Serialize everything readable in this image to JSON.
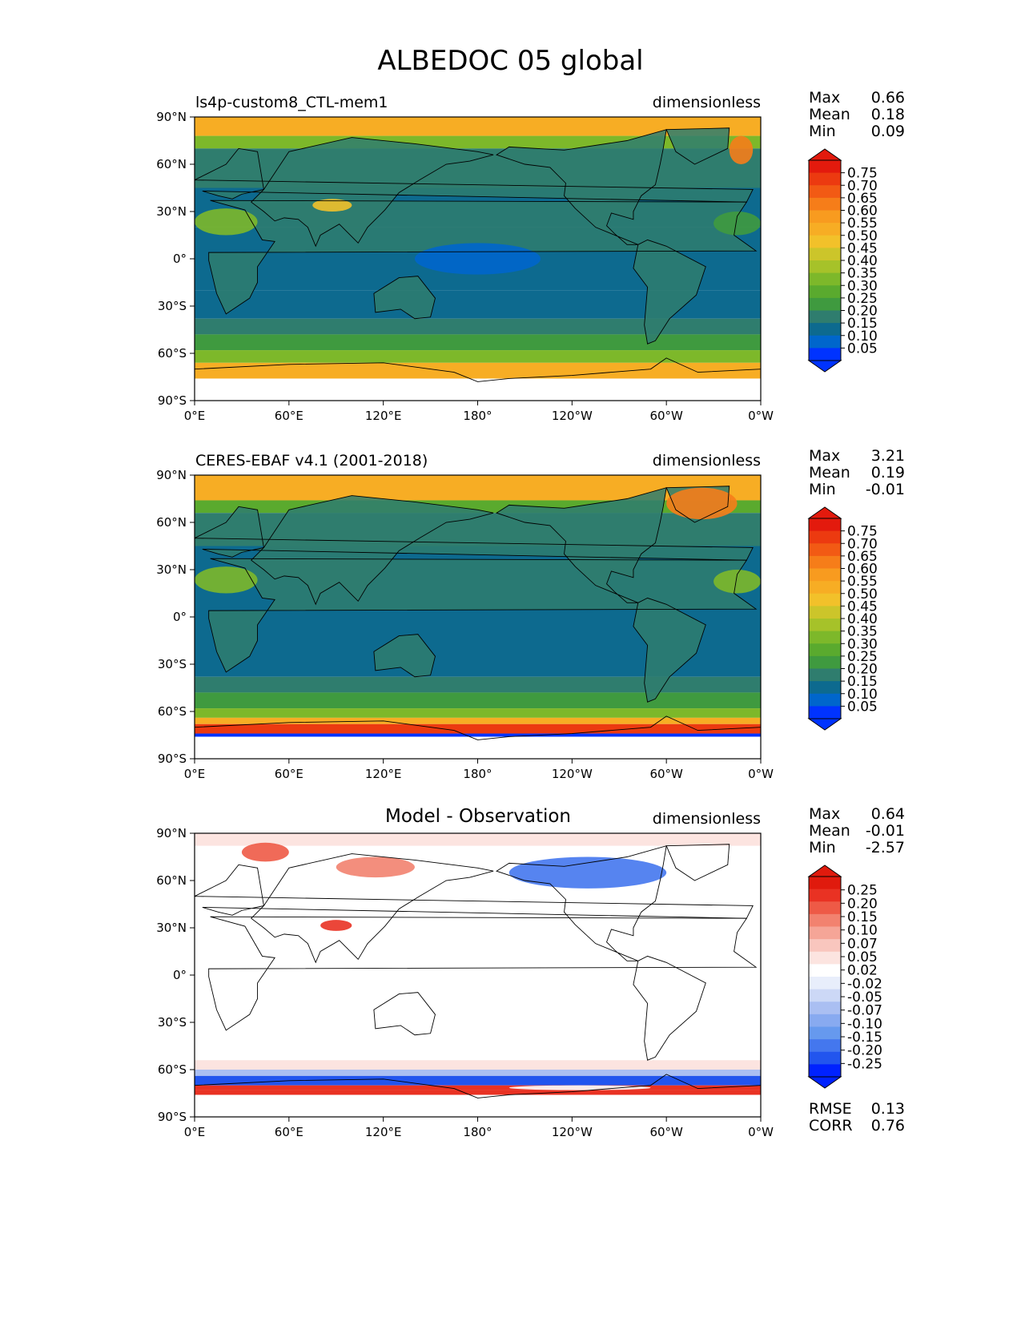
{
  "figure": {
    "title": "ALBEDOC 05 global"
  },
  "axes": {
    "lat_ticks": [
      "90°N",
      "60°N",
      "30°N",
      "0°",
      "30°S",
      "60°S",
      "90°S"
    ],
    "lon_ticks": [
      "0°E",
      "60°E",
      "120°E",
      "180°",
      "120°W",
      "60°W",
      "0°W"
    ]
  },
  "palettes": {
    "albedo": [
      "#0033ff",
      "#0066cc",
      "#0d6a8f",
      "#2f7d6e",
      "#3f9a3f",
      "#5aaa2e",
      "#7db82a",
      "#a6c229",
      "#ccc52a",
      "#f2c12a",
      "#f7ad24",
      "#f89b1f",
      "#f67d19",
      "#f25a14",
      "#ec3a10",
      "#e31a0d"
    ],
    "diff": [
      "#0022ff",
      "#2255ee",
      "#4477ee",
      "#6699ee",
      "#88aaf0",
      "#aabff2",
      "#ccd8f6",
      "#e8eefb",
      "#ffffff",
      "#fce4e0",
      "#f9c6be",
      "#f5a597",
      "#f2826f",
      "#ee5a46",
      "#e93223",
      "#e01a0d"
    ]
  },
  "panels": [
    {
      "title": "ls4p-custom8_CTL-mem1",
      "units": "dimensionless",
      "stats": [
        {
          "label": "Max",
          "value": "0.66"
        },
        {
          "label": "Mean",
          "value": "0.18"
        },
        {
          "label": "Min",
          "value": "0.09"
        }
      ],
      "colorbar": {
        "palette": "albedo",
        "ticks": [
          "0.75",
          "0.70",
          "0.65",
          "0.60",
          "0.55",
          "0.50",
          "0.45",
          "0.40",
          "0.35",
          "0.30",
          "0.25",
          "0.20",
          "0.15",
          "0.10",
          "0.05"
        ]
      },
      "map_bands": [
        {
          "lat": [
            90,
            78
          ],
          "color": "#f7ad24"
        },
        {
          "lat": [
            78,
            70
          ],
          "color": "#7db82a"
        },
        {
          "lat": [
            70,
            45
          ],
          "color": "#2f7d6e"
        },
        {
          "lat": [
            45,
            20
          ],
          "color": "#0d6a8f"
        },
        {
          "lat": [
            20,
            -20
          ],
          "color": "#0d6a8f"
        },
        {
          "lat": [
            -20,
            -38
          ],
          "color": "#0d6a8f"
        },
        {
          "lat": [
            -38,
            -48
          ],
          "color": "#2f7d6e"
        },
        {
          "lat": [
            -48,
            -58
          ],
          "color": "#3f9a3f"
        },
        {
          "lat": [
            -58,
            -66
          ],
          "color": "#7db82a"
        },
        {
          "lat": [
            -66,
            -76
          ],
          "color": "#f7ad24"
        }
      ],
      "map_highlights": [
        {
          "lon": [
            340,
            355
          ],
          "lat": [
            78,
            60
          ],
          "color": "#f67d19"
        },
        {
          "lon": [
            75,
            100
          ],
          "lat": [
            38,
            30
          ],
          "color": "#f2c12a"
        },
        {
          "lon": [
            0,
            40
          ],
          "lat": [
            32,
            15
          ],
          "color": "#7db82a"
        },
        {
          "lon": [
            140,
            220
          ],
          "lat": [
            10,
            -10
          ],
          "color": "#0066cc"
        },
        {
          "lon": [
            330,
            360
          ],
          "lat": [
            30,
            15
          ],
          "color": "#3f9a3f"
        }
      ]
    },
    {
      "title": "CERES-EBAF v4.1 (2001-2018)",
      "units": "dimensionless",
      "stats": [
        {
          "label": "Max",
          "value": "3.21"
        },
        {
          "label": "Mean",
          "value": "0.19"
        },
        {
          "label": "Min",
          "value": "-0.01"
        }
      ],
      "colorbar": {
        "palette": "albedo",
        "ticks": [
          "0.75",
          "0.70",
          "0.65",
          "0.60",
          "0.55",
          "0.50",
          "0.45",
          "0.40",
          "0.35",
          "0.30",
          "0.25",
          "0.20",
          "0.15",
          "0.10",
          "0.05"
        ]
      },
      "map_bands": [
        {
          "lat": [
            90,
            74
          ],
          "color": "#f7ad24"
        },
        {
          "lat": [
            74,
            66
          ],
          "color": "#5aaa2e"
        },
        {
          "lat": [
            66,
            45
          ],
          "color": "#2f7d6e"
        },
        {
          "lat": [
            45,
            -38
          ],
          "color": "#0d6a8f"
        },
        {
          "lat": [
            -38,
            -48
          ],
          "color": "#2f7d6e"
        },
        {
          "lat": [
            -48,
            -58
          ],
          "color": "#3f9a3f"
        },
        {
          "lat": [
            -58,
            -64
          ],
          "color": "#7db82a"
        },
        {
          "lat": [
            -64,
            -68
          ],
          "color": "#f7ad24"
        },
        {
          "lat": [
            -68,
            -74
          ],
          "color": "#ec3a10"
        },
        {
          "lat": [
            -74,
            -76
          ],
          "color": "#0033ff"
        }
      ],
      "map_highlights": [
        {
          "lon": [
            300,
            345
          ],
          "lat": [
            82,
            62
          ],
          "color": "#f67d19"
        },
        {
          "lon": [
            0,
            40
          ],
          "lat": [
            32,
            15
          ],
          "color": "#7db82a"
        },
        {
          "lon": [
            330,
            360
          ],
          "lat": [
            30,
            15
          ],
          "color": "#7db82a"
        }
      ]
    },
    {
      "title": "Model - Observation",
      "units": "dimensionless",
      "stats": [
        {
          "label": "Max",
          "value": "0.64"
        },
        {
          "label": "Mean",
          "value": "-0.01"
        },
        {
          "label": "Min",
          "value": "-2.57"
        }
      ],
      "colorbar": {
        "palette": "diff",
        "ticks": [
          "0.25",
          "0.20",
          "0.15",
          "0.10",
          "0.07",
          "0.05",
          "0.02",
          "-0.02",
          "-0.05",
          "-0.07",
          "-0.10",
          "-0.15",
          "-0.20",
          "-0.25"
        ]
      },
      "extra_stats": [
        {
          "label": "RMSE",
          "value": "0.13"
        },
        {
          "label": "CORR",
          "value": "0.76"
        }
      ],
      "map_bands": [
        {
          "lat": [
            90,
            82
          ],
          "color": "#fce4e0"
        },
        {
          "lat": [
            82,
            -54
          ],
          "color": "#ffffff"
        },
        {
          "lat": [
            -54,
            -60
          ],
          "color": "#fce4e0"
        },
        {
          "lat": [
            -60,
            -64
          ],
          "color": "#aabff2"
        },
        {
          "lat": [
            -64,
            -70
          ],
          "color": "#2255ee"
        },
        {
          "lat": [
            -70,
            -73
          ],
          "color": "#e93223"
        },
        {
          "lat": [
            -73,
            -76
          ],
          "color": "#e93223"
        }
      ],
      "map_highlights": [
        {
          "lon": [
            30,
            60
          ],
          "lat": [
            84,
            72
          ],
          "color": "#ee5a46"
        },
        {
          "lon": [
            90,
            140
          ],
          "lat": [
            75,
            62
          ],
          "color": "#f2826f"
        },
        {
          "lon": [
            200,
            300
          ],
          "lat": [
            75,
            55
          ],
          "color": "#4477ee"
        },
        {
          "lon": [
            80,
            100
          ],
          "lat": [
            35,
            28
          ],
          "color": "#e93223"
        },
        {
          "lon": [
            200,
            290
          ],
          "lat": [
            -70,
            -73
          ],
          "color": "#ffffff"
        }
      ]
    }
  ]
}
